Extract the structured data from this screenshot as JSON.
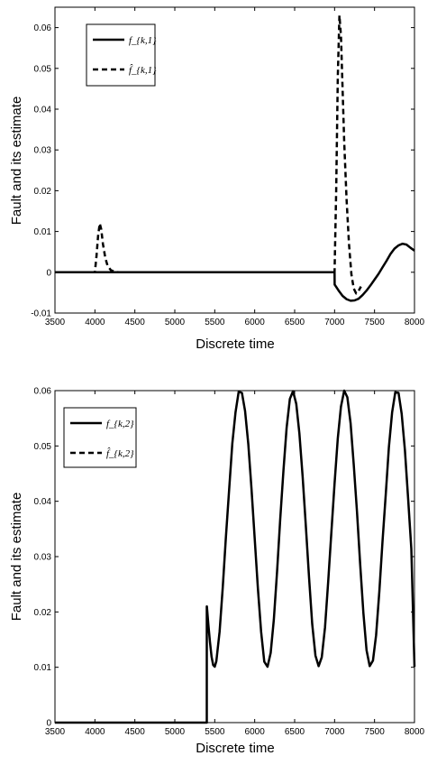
{
  "chart_data": [
    {
      "type": "line",
      "xlabel": "Discrete time",
      "ylabel": "Fault and its estimate",
      "xlim": [
        3500,
        8000
      ],
      "ylim": [
        -0.01,
        0.065
      ],
      "xticks": [
        3500,
        4000,
        4500,
        5000,
        5500,
        6000,
        6500,
        7000,
        7500,
        8000
      ],
      "yticks": [
        -0.01,
        0,
        0.01,
        0.02,
        0.03,
        0.04,
        0.05,
        0.06
      ],
      "ytick_labels": [
        "-0.01",
        "0",
        "0.01",
        "0.02",
        "0.03",
        "0.04",
        "0.05",
        "0.06"
      ],
      "grid": false,
      "legend_position": "top-left",
      "series": [
        {
          "name": "f_{k,1}",
          "style": "solid",
          "x": [
            3500,
            7000,
            7001,
            7050,
            7100,
            7150,
            7200,
            7250,
            7300,
            7350,
            7400,
            7450,
            7500,
            7550,
            7600,
            7650,
            7700,
            7750,
            7800,
            7850,
            7900,
            7950,
            8000
          ],
          "y": [
            0,
            0,
            -0.003,
            -0.0045,
            -0.0058,
            -0.0066,
            -0.007,
            -0.0069,
            -0.0065,
            -0.0056,
            -0.0045,
            -0.0032,
            -0.0018,
            -0.0004,
            0.0012,
            0.0028,
            0.0045,
            0.0058,
            0.0066,
            0.007,
            0.0068,
            0.006,
            0.0053
          ]
        },
        {
          "name": "f̂_{k,1}",
          "style": "dashed",
          "x": [
            3500,
            4000,
            4020,
            4040,
            4060,
            4080,
            4100,
            4130,
            4160,
            4200,
            4250,
            4300,
            7000,
            7020,
            7040,
            7060,
            7080,
            7100,
            7120,
            7150,
            7180,
            7210,
            7240,
            7270,
            7300,
            7330
          ],
          "y": [
            0,
            0,
            0.004,
            0.009,
            0.012,
            0.0105,
            0.007,
            0.0035,
            0.0015,
            0.0005,
            0.0001,
            0,
            0,
            0.02,
            0.048,
            0.063,
            0.058,
            0.045,
            0.032,
            0.018,
            0.007,
            -0.0005,
            -0.004,
            -0.0052,
            -0.0046,
            -0.0035
          ]
        }
      ]
    },
    {
      "type": "line",
      "xlabel": "Discrete time",
      "ylabel": "Fault and its estimate",
      "xlim": [
        3500,
        8000
      ],
      "ylim": [
        0,
        0.06
      ],
      "xticks": [
        3500,
        4000,
        4500,
        5000,
        5500,
        6000,
        6500,
        7000,
        7500,
        8000
      ],
      "yticks": [
        0,
        0.01,
        0.02,
        0.03,
        0.04,
        0.05,
        0.06
      ],
      "ytick_labels": [
        "0",
        "0.01",
        "0.02",
        "0.03",
        "0.04",
        "0.05",
        "0.06"
      ],
      "grid": false,
      "legend_position": "top-left",
      "series": [
        {
          "name": "f_{k,2}",
          "style": "solid",
          "x": [
            3500,
            5400,
            5400,
            5401,
            5420,
            5440,
            5460,
            5480,
            5500,
            5520,
            5560,
            5600,
            5640,
            5680,
            5720,
            5760,
            5800,
            5840,
            5880,
            5920,
            5960,
            6000,
            6040,
            6080,
            6120,
            6160,
            6200,
            6240,
            6280,
            6320,
            6360,
            6400,
            6440,
            6480,
            6520,
            6560,
            6600,
            6640,
            6680,
            6720,
            6760,
            6800,
            6840,
            6880,
            6920,
            6960,
            7000,
            7040,
            7080,
            7120,
            7160,
            7200,
            7240,
            7280,
            7320,
            7360,
            7400,
            7440,
            7480,
            7520,
            7560,
            7600,
            7640,
            7680,
            7720,
            7760,
            7800,
            7840,
            7880,
            7920,
            7960,
            8000
          ],
          "y": [
            0,
            0,
            0.021,
            0.021,
            0.0178,
            0.0146,
            0.0119,
            0.0104,
            0.0101,
            0.0111,
            0.0164,
            0.0244,
            0.0335,
            0.0421,
            0.0504,
            0.0561,
            0.0598,
            0.0596,
            0.0563,
            0.0503,
            0.0423,
            0.0332,
            0.0243,
            0.0164,
            0.011,
            0.0101,
            0.0126,
            0.0186,
            0.0273,
            0.0368,
            0.0456,
            0.0533,
            0.0585,
            0.0599,
            0.0576,
            0.0522,
            0.0444,
            0.0356,
            0.0262,
            0.0178,
            0.0121,
            0.0102,
            0.0118,
            0.0172,
            0.0254,
            0.0345,
            0.0432,
            0.0514,
            0.0571,
            0.06,
            0.0588,
            0.0541,
            0.0466,
            0.0381,
            0.0287,
            0.0198,
            0.0131,
            0.0102,
            0.0112,
            0.0158,
            0.0237,
            0.0327,
            0.0412,
            0.0498,
            0.0561,
            0.0597,
            0.0596,
            0.0558,
            0.0492,
            0.0406,
            0.0314,
            0.0101
          ]
        },
        {
          "name": "f̂_{k,2}",
          "style": "dashed",
          "x": [],
          "y": []
        }
      ]
    }
  ]
}
